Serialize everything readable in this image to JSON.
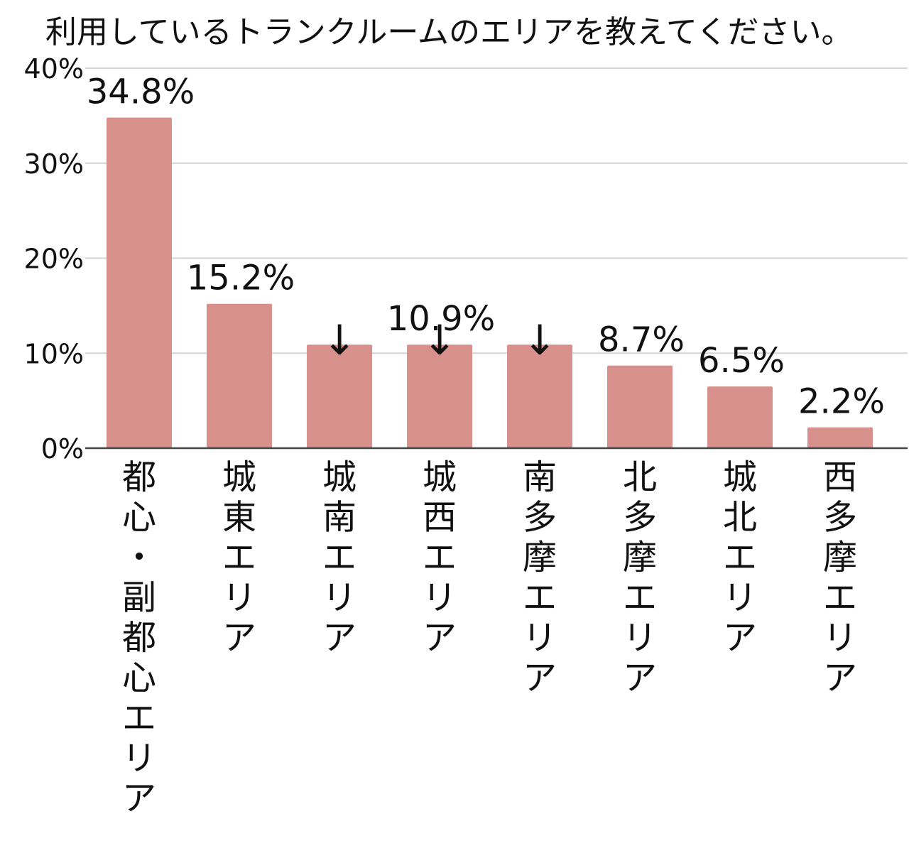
{
  "chart_data": {
    "type": "bar",
    "title": "利用しているトランクルームのエリアを教えてください。",
    "categories": [
      "都心・副都心エリア",
      "城東エリア",
      "城南エリア",
      "城西エリア",
      "南多摩エリア",
      "北多摩エリア",
      "城北エリア",
      "西多摩エリア"
    ],
    "values": [
      34.8,
      15.2,
      10.9,
      10.9,
      10.9,
      8.7,
      6.5,
      2.2
    ],
    "data_labels": [
      "34.8%",
      "15.2%",
      "↓",
      "10.9%",
      "↓",
      "8.7%",
      "6.5%",
      "2.2%"
    ],
    "marker_bars": [
      2,
      3,
      4
    ],
    "marker_glyph": "↓",
    "ylim": [
      0,
      40
    ],
    "yticks": [
      0,
      10,
      20,
      30,
      40
    ],
    "ytick_labels": [
      "0%",
      "10%",
      "20%",
      "30%",
      "40%"
    ],
    "xlabel": "",
    "ylabel": "",
    "grid": true,
    "bar_color": "#d8908c",
    "grid_color": "#d4d4d4",
    "axis_color": "#444444",
    "text_color": "#111111"
  }
}
